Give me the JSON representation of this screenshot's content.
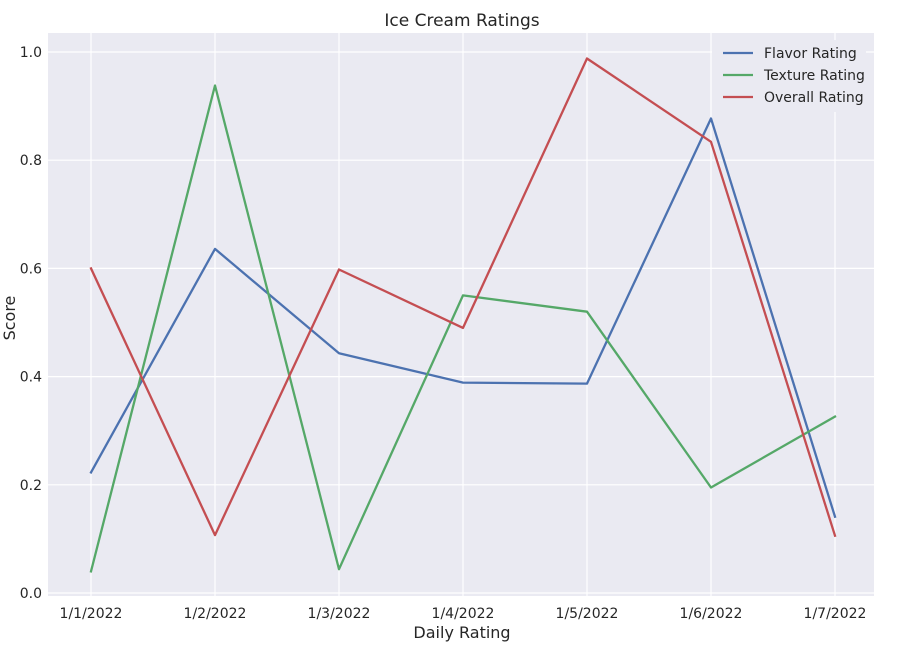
{
  "chart_data": {
    "type": "line",
    "title": "Ice Cream Ratings",
    "xlabel": "Daily Rating",
    "ylabel": "Score",
    "categories": [
      "1/1/2022",
      "1/2/2022",
      "1/3/2022",
      "1/4/2022",
      "1/5/2022",
      "1/6/2022",
      "1/7/2022"
    ],
    "ylim": [
      0.0,
      1.0
    ],
    "yticks": [
      "0.0",
      "0.2",
      "0.4",
      "0.6",
      "0.8",
      "1.0"
    ],
    "grid": true,
    "legend_position": "top-right",
    "series": [
      {
        "name": "Flavor Rating",
        "color": "#4c72b0",
        "values": [
          0.223,
          0.636,
          0.443,
          0.389,
          0.387,
          0.877,
          0.141
        ]
      },
      {
        "name": "Texture Rating",
        "color": "#55a868",
        "values": [
          0.04,
          0.938,
          0.044,
          0.55,
          0.52,
          0.195,
          0.326
        ]
      },
      {
        "name": "Overall Rating",
        "color": "#c44e52",
        "values": [
          0.6,
          0.107,
          0.598,
          0.49,
          0.988,
          0.834,
          0.106
        ]
      }
    ]
  }
}
